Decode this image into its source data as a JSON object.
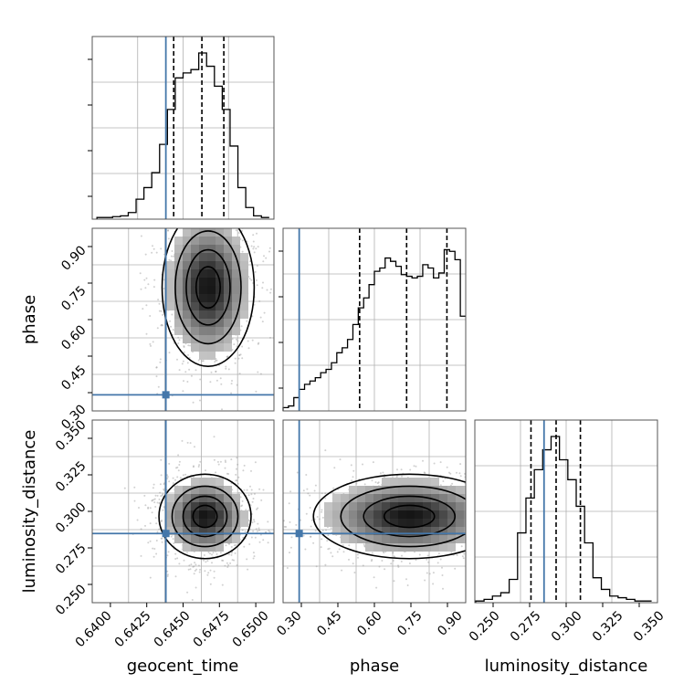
{
  "chart_data": [
    {
      "type": "histogram",
      "panel": "geocent_time",
      "x": [
        0.6395,
        0.64,
        0.6405,
        0.641,
        0.6415,
        0.642,
        0.6425,
        0.643,
        0.6435,
        0.644,
        0.6445,
        0.645,
        0.6455,
        0.646,
        0.6465,
        0.647,
        0.6475,
        0.648,
        0.6485,
        0.649,
        0.6495,
        0.65,
        0.6505
      ],
      "values": [
        0.01,
        0.01,
        0.015,
        0.02,
        0.04,
        0.12,
        0.19,
        0.28,
        0.45,
        0.66,
        0.85,
        0.88,
        0.9,
        1.0,
        0.92,
        0.8,
        0.66,
        0.44,
        0.19,
        0.07,
        0.02,
        0.01
      ],
      "xlim": [
        0.6392,
        0.6508
      ],
      "truth": 0.6439,
      "quantiles": [
        0.6444,
        0.6462,
        0.6476
      ],
      "grid": true
    },
    {
      "type": "histogram",
      "panel": "phase",
      "x": [
        0.29,
        0.31,
        0.33,
        0.35,
        0.37,
        0.39,
        0.41,
        0.43,
        0.45,
        0.47,
        0.49,
        0.51,
        0.53,
        0.55,
        0.57,
        0.59,
        0.61,
        0.63,
        0.65,
        0.67,
        0.69,
        0.71,
        0.73,
        0.75,
        0.77,
        0.79,
        0.81,
        0.83,
        0.85,
        0.87,
        0.89,
        0.91,
        0.93,
        0.95,
        0.97
      ],
      "values": [
        0.02,
        0.03,
        0.08,
        0.13,
        0.16,
        0.18,
        0.2,
        0.23,
        0.25,
        0.29,
        0.35,
        0.38,
        0.43,
        0.52,
        0.62,
        0.68,
        0.76,
        0.84,
        0.86,
        0.92,
        0.9,
        0.87,
        0.82,
        0.81,
        0.8,
        0.81,
        0.88,
        0.86,
        0.8,
        0.83,
        0.97,
        0.96,
        0.91,
        0.57
      ],
      "xlim": [
        0.29,
        0.97
      ],
      "truth": 0.35,
      "quantiles": [
        0.575,
        0.75,
        0.9
      ],
      "grid": true
    },
    {
      "type": "histogram",
      "panel": "luminosity_distance",
      "x": [
        0.2445,
        0.2495,
        0.2545,
        0.2595,
        0.2645,
        0.2695,
        0.2745,
        0.2795,
        0.2845,
        0.2895,
        0.2945,
        0.2995,
        0.3045,
        0.3095,
        0.3145,
        0.3195,
        0.3245,
        0.3295,
        0.3345,
        0.3395,
        0.3445,
        0.3495
      ],
      "values": [
        0.01,
        0.02,
        0.04,
        0.06,
        0.14,
        0.42,
        0.63,
        0.8,
        0.92,
        1.0,
        0.86,
        0.74,
        0.58,
        0.36,
        0.15,
        0.08,
        0.04,
        0.03,
        0.02,
        0.01,
        0.01
      ],
      "xlim": [
        0.244,
        0.353
      ],
      "truth": 0.2853,
      "quantiles": [
        0.2775,
        0.2925,
        0.307
      ],
      "grid": true
    },
    {
      "type": "scatter",
      "panel": "phase vs geocent_time",
      "xlabel": "",
      "ylabel": "phase",
      "xlim": [
        0.6392,
        0.6508
      ],
      "ylim": [
        0.29,
        0.97
      ],
      "yticks": [
        "0.30",
        "0.45",
        "0.60",
        "0.75",
        "0.90"
      ],
      "truth": [
        0.6439,
        0.35
      ],
      "density_center": [
        0.6466,
        0.75
      ],
      "density_spread": [
        0.0014,
        0.14
      ]
    },
    {
      "type": "scatter",
      "panel": "luminosity_distance vs geocent_time",
      "xlabel": "geocent_time",
      "ylabel": "luminosity_distance",
      "xlim": [
        0.6392,
        0.6508
      ],
      "ylim": [
        0.244,
        0.353
      ],
      "xticks": [
        "0.6400",
        "0.6425",
        "0.6450",
        "0.6475",
        "0.6500"
      ],
      "yticks": [
        "0.250",
        "0.275",
        "0.300",
        "0.325",
        "0.350"
      ],
      "truth": [
        0.6439,
        0.2853
      ],
      "density_center": [
        0.6464,
        0.2955
      ],
      "density_spread": [
        0.0014,
        0.012
      ]
    },
    {
      "type": "scatter",
      "panel": "luminosity_distance vs phase",
      "xlabel": "phase",
      "ylabel": "",
      "xlim": [
        0.29,
        0.97
      ],
      "ylim": [
        0.244,
        0.353
      ],
      "xticks": [
        "0.30",
        "0.45",
        "0.60",
        "0.75",
        "0.90"
      ],
      "truth": [
        0.35,
        0.2853
      ],
      "density_center": [
        0.76,
        0.2955
      ],
      "density_spread": [
        0.17,
        0.012
      ]
    }
  ],
  "axis_labels": {
    "geocent_time": "geocent_time",
    "phase": "phase",
    "luminosity_distance": "luminosity_distance"
  },
  "tick_labels": {
    "geocent_time": [
      "0.6400",
      "0.6425",
      "0.6450",
      "0.6475",
      "0.6500"
    ],
    "phase_x": [
      "0.30",
      "0.45",
      "0.60",
      "0.75",
      "0.90"
    ],
    "phase_y": [
      "0.30",
      "0.45",
      "0.60",
      "0.75",
      "0.90"
    ],
    "luminosity_distance_x": [
      "0.250",
      "0.275",
      "0.300",
      "0.325",
      "0.350"
    ],
    "luminosity_distance_y": [
      "0.250",
      "0.275",
      "0.300",
      "0.325",
      "0.350"
    ]
  },
  "colors": {
    "truth": "#4477aa",
    "quantile": "#000000",
    "histogram": "#000000",
    "grid": "#b0b0b0",
    "scatter": "#9a9a9a"
  }
}
